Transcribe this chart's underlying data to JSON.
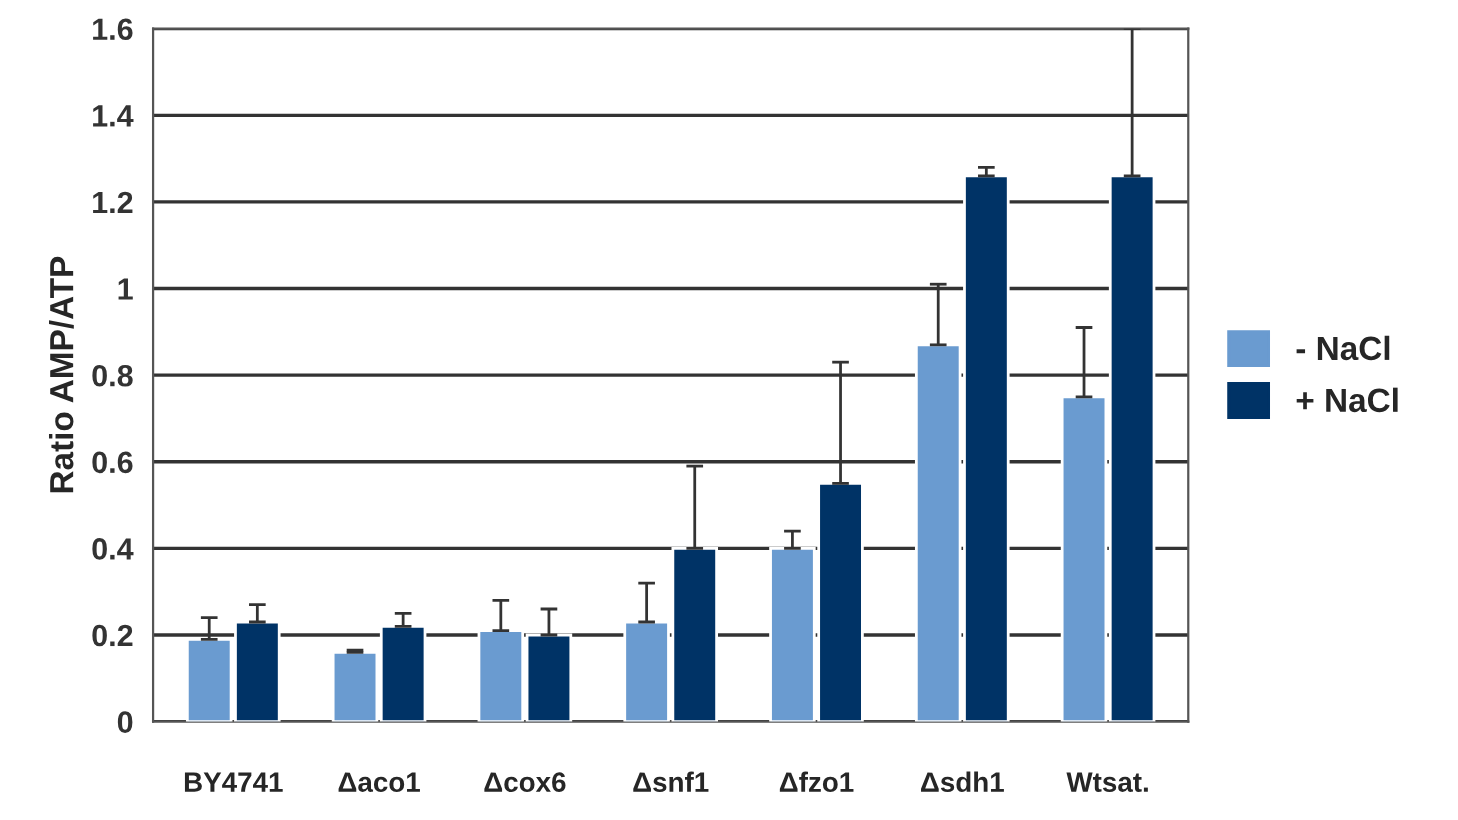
{
  "chart_data": {
    "type": "bar",
    "ylabel": "Ratio AMP/ATP",
    "categories": [
      "BY4741",
      "Δaco1",
      "Δcox6",
      "Δsnf1",
      "Δfzo1",
      "Δsdh1",
      "Wtsat."
    ],
    "series": [
      {
        "name": "- NaCl",
        "color": "#6a9bd0",
        "values": [
          0.19,
          0.16,
          0.21,
          0.23,
          0.4,
          0.87,
          0.75
        ],
        "errors": [
          [
            0.19,
            0.24
          ],
          [
            0.16,
            0.165
          ],
          [
            0.21,
            0.28
          ],
          [
            0.23,
            0.32
          ],
          [
            0.4,
            0.44
          ],
          [
            0.87,
            1.01
          ],
          [
            0.75,
            0.91
          ]
        ]
      },
      {
        "name": "+ NaCl",
        "color": "#003366",
        "values": [
          0.23,
          0.22,
          0.2,
          0.4,
          0.55,
          1.26,
          1.26
        ],
        "errors": [
          [
            0.23,
            0.27
          ],
          [
            0.22,
            0.25
          ],
          [
            0.2,
            0.26
          ],
          [
            0.4,
            0.59
          ],
          [
            0.55,
            0.83
          ],
          [
            1.26,
            1.28
          ],
          [
            1.26,
            1.6
          ]
        ]
      }
    ],
    "ylim": [
      0,
      1.6
    ],
    "yticks": [
      0,
      0.2,
      0.4,
      0.6,
      0.8,
      1,
      1.2,
      1.4,
      1.6
    ],
    "grid": "y",
    "legend": "right"
  }
}
